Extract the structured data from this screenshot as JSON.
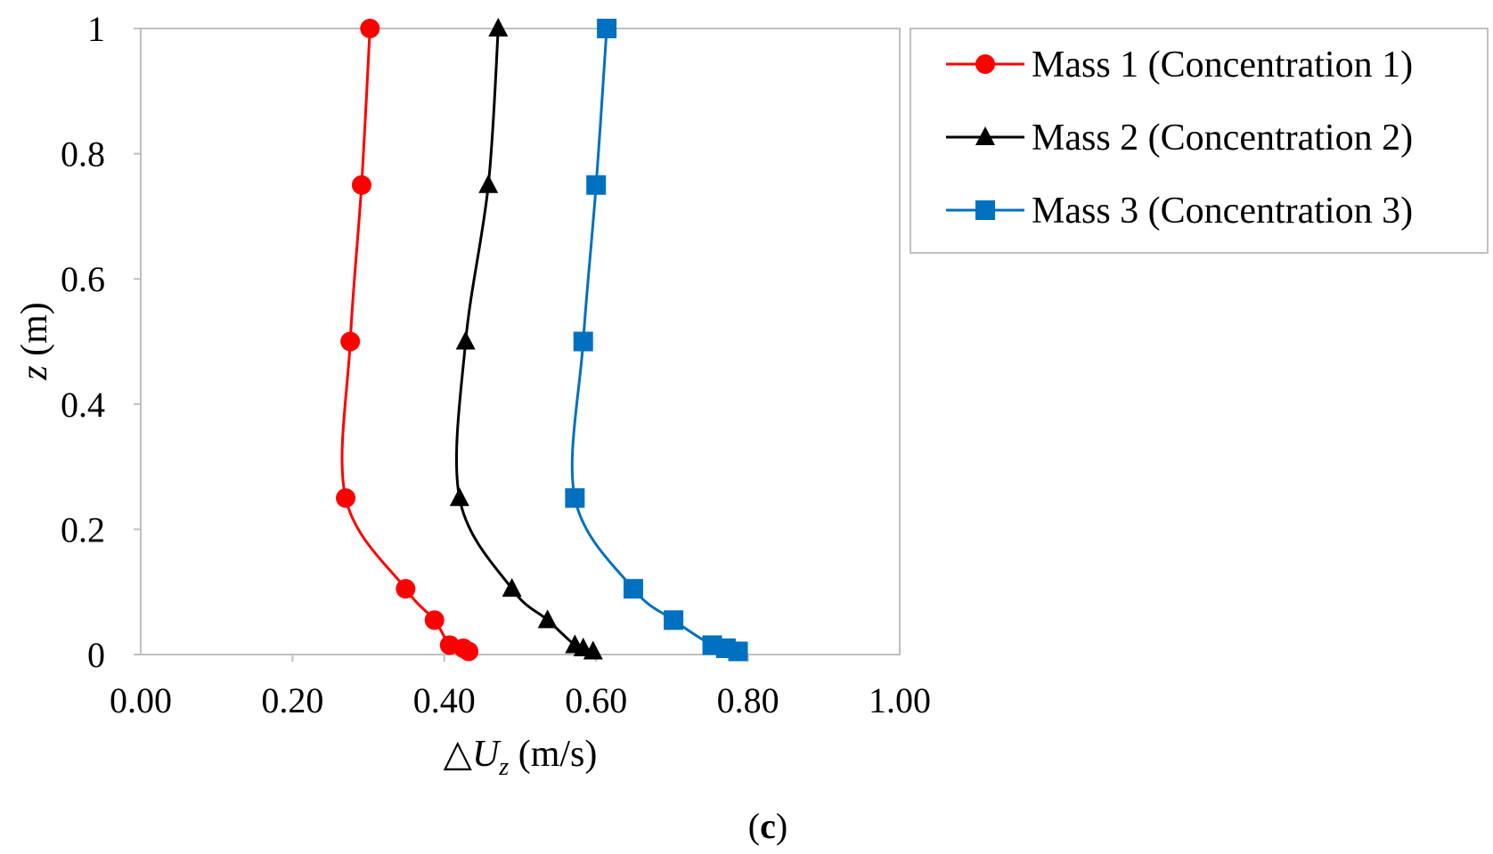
{
  "chart_data": {
    "type": "line",
    "title": "",
    "xlabel": "△Uz (m/s)",
    "xlabel_parts": {
      "delta": "△",
      "var": "U",
      "sub": "z",
      "unit": " (m/s)"
    },
    "ylabel": "z (m)",
    "ylabel_parts": {
      "var": "z",
      "unit": " (m)"
    },
    "xlim": [
      0,
      1
    ],
    "ylim": [
      0,
      1
    ],
    "x_ticks": [
      0,
      0.2,
      0.4,
      0.6,
      0.8,
      1.0
    ],
    "x_tick_labels": [
      "0.00",
      "0.20",
      "0.40",
      "0.60",
      "0.80",
      "1.00"
    ],
    "y_ticks": [
      0,
      0.2,
      0.4,
      0.6,
      0.8,
      1.0
    ],
    "y_tick_labels": [
      "0",
      "0.2",
      "0.4",
      "0.6",
      "0.8",
      "1"
    ],
    "grid": false,
    "legend_position": "top-right, outside plot area",
    "caption": "(c)",
    "caption_parts": {
      "open": "(",
      "letter": "c",
      "close": ")"
    },
    "series": [
      {
        "name": "Mass 1 (Concentration 1)",
        "color": "#ff0000",
        "marker": "circle",
        "x": [
          0.432,
          0.425,
          0.407,
          0.387,
          0.349,
          0.27,
          0.276,
          0.291,
          0.302
        ],
        "y": [
          0.005,
          0.01,
          0.015,
          0.055,
          0.105,
          0.25,
          0.5,
          0.75,
          1.0
        ]
      },
      {
        "name": "Mass 2 (Concentration 2)",
        "color": "#000000",
        "marker": "triangle",
        "x": [
          0.596,
          0.583,
          0.572,
          0.536,
          0.489,
          0.42,
          0.428,
          0.458,
          0.471
        ],
        "y": [
          0.005,
          0.01,
          0.015,
          0.055,
          0.105,
          0.25,
          0.5,
          0.75,
          1.0
        ]
      },
      {
        "name": "Mass 3 (Concentration 3)",
        "color": "#0070c0",
        "marker": "square",
        "x": [
          0.787,
          0.771,
          0.753,
          0.702,
          0.649,
          0.572,
          0.583,
          0.6,
          0.614
        ],
        "y": [
          0.005,
          0.01,
          0.015,
          0.055,
          0.105,
          0.25,
          0.5,
          0.75,
          1.0
        ]
      }
    ]
  }
}
